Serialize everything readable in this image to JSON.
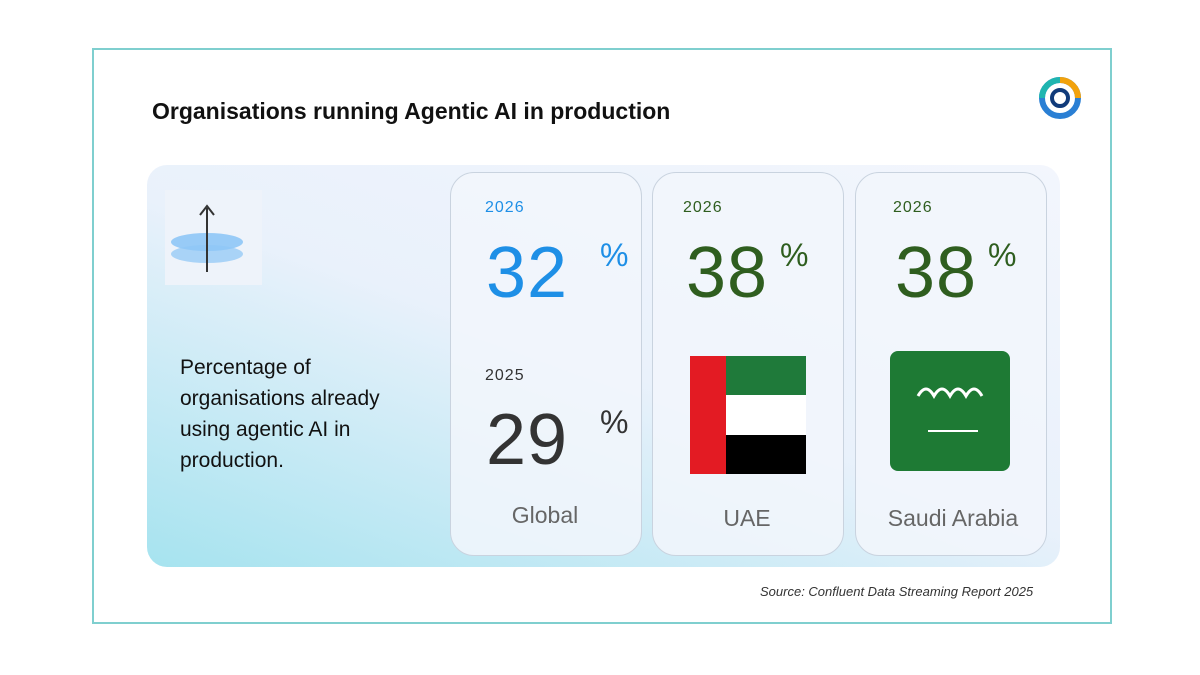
{
  "header": {
    "title": "Organisations running Agentic AI in production"
  },
  "panel": {
    "description": "Percentage of organisations already using agentic AI in production."
  },
  "cards": [
    {
      "region": "Global",
      "stats": [
        {
          "year": "2026",
          "value": "32",
          "unit": "%"
        },
        {
          "year": "2025",
          "value": "29",
          "unit": "%"
        }
      ]
    },
    {
      "region": "UAE",
      "stats": [
        {
          "year": "2026",
          "value": "38",
          "unit": "%"
        }
      ]
    },
    {
      "region": "Saudi Arabia",
      "stats": [
        {
          "year": "2026",
          "value": "38",
          "unit": "%"
        }
      ]
    }
  ],
  "source": "Source: Confluent Data Streaming Report 2025"
}
